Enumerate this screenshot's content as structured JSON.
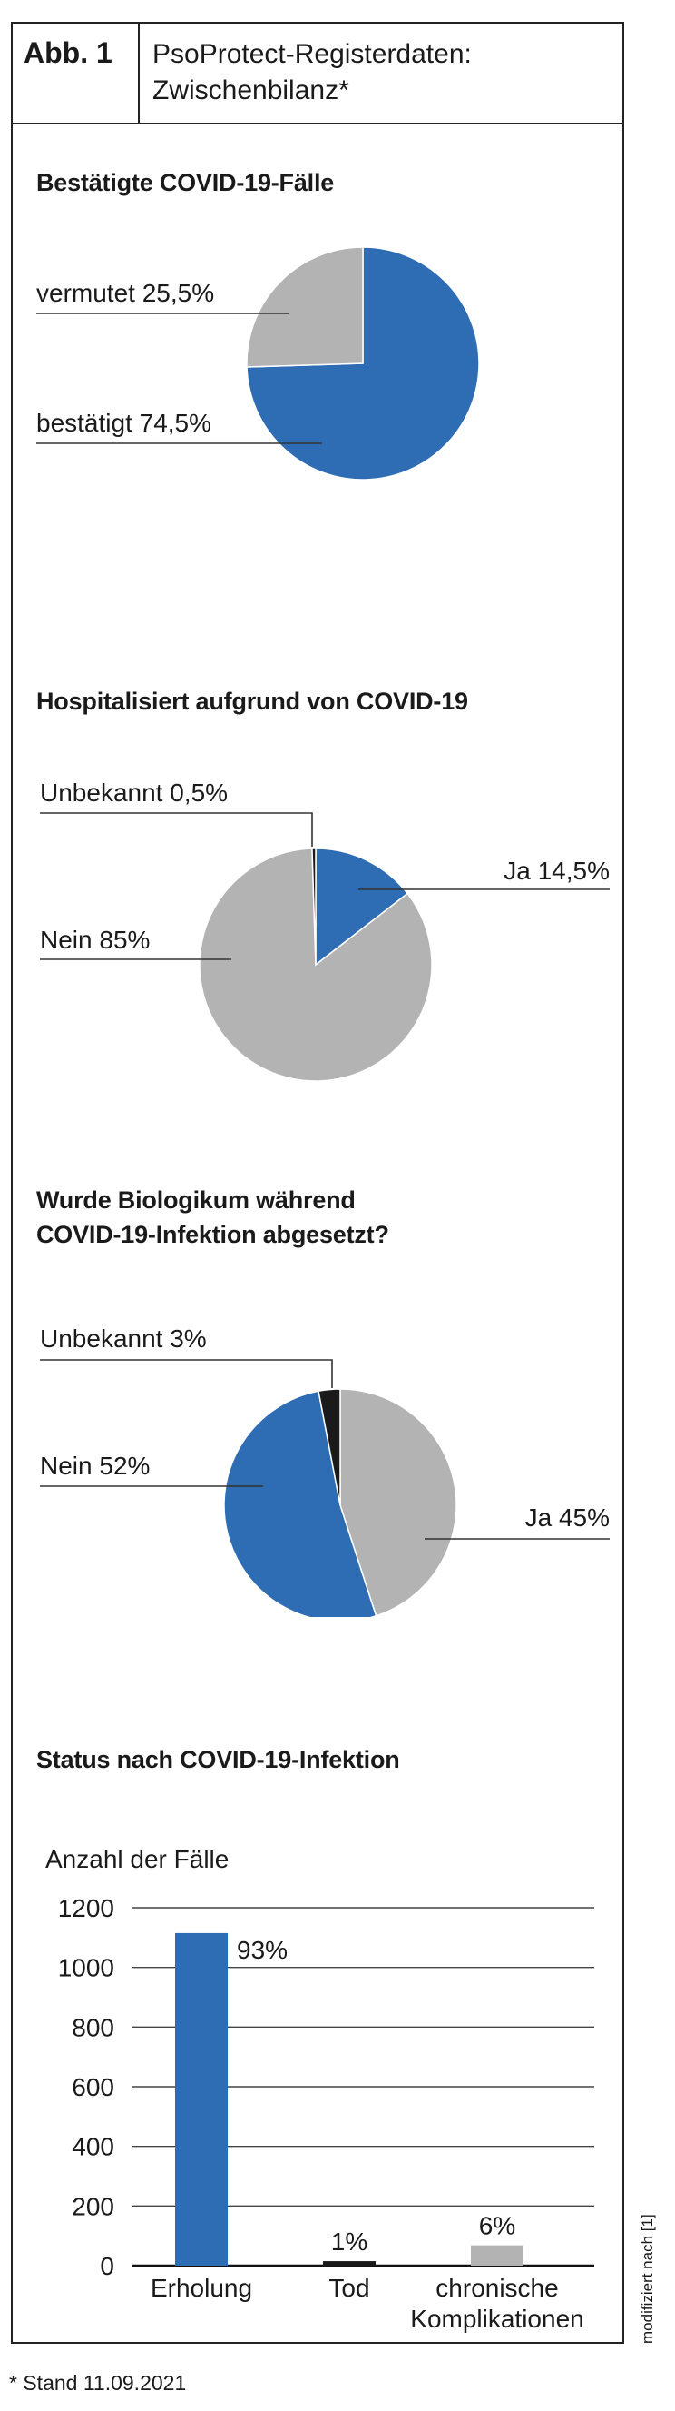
{
  "figure": {
    "label": "Abb. 1",
    "title_line1": "PsoProtect-Registerdaten:",
    "title_line2": "Zwischenbilanz*",
    "footnote": "* Stand 11.09.2021",
    "source": "modifiziert nach [1]"
  },
  "colors": {
    "blue": "#2e6db3",
    "gray": "#b3b3b3",
    "black": "#1a1a1a",
    "line": "#333333"
  },
  "chart_data": [
    {
      "type": "pie",
      "title": "Bestätigte COVID-19-Fälle",
      "slices": [
        {
          "label": "bestätigt 74,5%",
          "value": 74.5,
          "color": "#2e6db3"
        },
        {
          "label": "vermutet 25,5%",
          "value": 25.5,
          "color": "#b3b3b3"
        }
      ]
    },
    {
      "type": "pie",
      "title": "Hospitalisiert aufgrund von COVID-19",
      "slices": [
        {
          "label": "Ja 14,5%",
          "value": 14.5,
          "color": "#2e6db3"
        },
        {
          "label": "Nein 85%",
          "value": 85,
          "color": "#b3b3b3"
        },
        {
          "label": "Unbekannt 0,5%",
          "value": 0.5,
          "color": "#1a1a1a"
        }
      ]
    },
    {
      "type": "pie",
      "title_line1": "Wurde Biologikum während",
      "title_line2": "COVID-19-Infektion abgesetzt?",
      "slices": [
        {
          "label": "Ja 45%",
          "value": 45,
          "color": "#b3b3b3"
        },
        {
          "label": "Nein 52%",
          "value": 52,
          "color": "#2e6db3"
        },
        {
          "label": "Unbekannt 3%",
          "value": 3,
          "color": "#1a1a1a"
        }
      ]
    },
    {
      "type": "bar",
      "title": "Status nach COVID-19-Infektion",
      "ylabel": "Anzahl der Fälle",
      "ylim": [
        0,
        1200
      ],
      "yticks": [
        0,
        200,
        400,
        600,
        800,
        1000,
        1200
      ],
      "grid": true,
      "categories": [
        {
          "line1": "Erholung",
          "line2": ""
        },
        {
          "line1": "Tod",
          "line2": ""
        },
        {
          "line1": "chronische",
          "line2": "Komplikationen"
        }
      ],
      "values": [
        1115,
        15,
        68
      ],
      "percent_labels": [
        "93%",
        "1%",
        "6%"
      ],
      "colors": [
        "#2e6db3",
        "#1a1a1a",
        "#b3b3b3"
      ]
    }
  ]
}
